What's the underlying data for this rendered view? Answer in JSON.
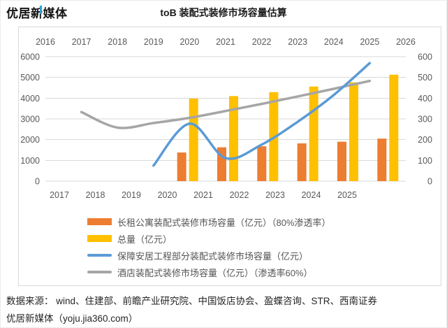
{
  "header": {
    "logo_text_pre": "优居",
    "logo_text_xin": "新",
    "logo_text_post": "媒体",
    "title": "toB 装配式装修市场容量估算"
  },
  "chart_data": {
    "type": "bar+line",
    "title": "toB 装配式装修市场容量估算",
    "grid": true,
    "legend_position": "bottom-left",
    "top_axis_labels": [
      "2016",
      "2017",
      "2018",
      "2019",
      "2020",
      "2021",
      "2022",
      "2023",
      "2024",
      "2025",
      "2026"
    ],
    "bottom_axis_labels": [
      "2017",
      "2018",
      "2019",
      "2020",
      "2021",
      "2022",
      "2023",
      "2024",
      "2025"
    ],
    "left_axis": {
      "min": 0,
      "max": 6000,
      "tick_step": 1000,
      "ticks": [
        "6000",
        "5000",
        "4000",
        "3000",
        "2000",
        "1000",
        "0"
      ]
    },
    "right_axis": {
      "min": 0,
      "max": 600,
      "tick_step": 100,
      "ticks": [
        "600",
        "500",
        "400",
        "300",
        "200",
        "100",
        "0"
      ]
    },
    "bar_categories": [
      "2020",
      "2021",
      "2022",
      "2023",
      "2024",
      "2025"
    ],
    "series": [
      {
        "name": "长租公寓装配式装修市场容量（亿元）（80%渗透率）",
        "type": "bar",
        "axis": "left",
        "color": "#ED7D31",
        "categories": [
          "2020",
          "2021",
          "2022",
          "2023",
          "2024",
          "2025"
        ],
        "values": [
          1380,
          1630,
          1680,
          1820,
          1900,
          2050
        ]
      },
      {
        "name": "总量（亿元）",
        "type": "bar",
        "axis": "left",
        "color": "#FFC000",
        "categories": [
          "2020",
          "2021",
          "2022",
          "2023",
          "2024",
          "2025"
        ],
        "values": [
          3980,
          4100,
          4290,
          4560,
          4760,
          5130
        ]
      },
      {
        "name": "保障安居工程部分装配式装修市场容量（亿元）",
        "type": "line",
        "axis": "left",
        "color": "#5B9BD5",
        "x": [
          "2019",
          "2020",
          "2021",
          "2022",
          "2023",
          "2024",
          "2025"
        ],
        "values": [
          750,
          2770,
          1110,
          1760,
          2860,
          4150,
          5690
        ]
      },
      {
        "name": "酒店装配式装修市场容量（亿元）（渗透率60%）",
        "type": "line",
        "axis": "right",
        "color": "#A6A6A6",
        "x": [
          "2017",
          "2018",
          "2019",
          "2020",
          "2021",
          "2022",
          "2023",
          "2024",
          "2025"
        ],
        "values": [
          333,
          258,
          280,
          305,
          338,
          372,
          408,
          445,
          483
        ]
      }
    ],
    "colors": {
      "grid": "#D9D9D9",
      "axis_text": "#595959",
      "panel_border": "#D9D9D9",
      "bar_orange": "#ED7D31",
      "bar_yellow": "#FFC000",
      "line_blue": "#5B9BD5",
      "line_gray": "#A6A6A6"
    }
  },
  "footer": {
    "source_line": "数据来源： wind、住建部、前瞻产业研究院、中国饭店协会、盈蝶咨询、STR、西南证券",
    "site_line": "优居新媒体（yoju.jia360.com）"
  }
}
